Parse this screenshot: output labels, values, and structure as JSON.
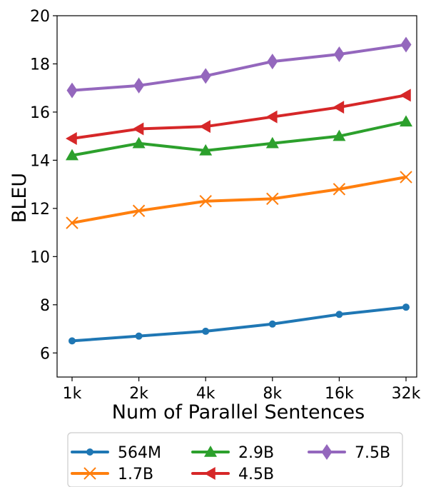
{
  "chart_data": {
    "type": "line",
    "title": "",
    "xlabel": "Num of Parallel Sentences",
    "ylabel": "BLEU",
    "categories": [
      "1k",
      "2k",
      "4k",
      "8k",
      "16k",
      "32k"
    ],
    "ylim": [
      5,
      20
    ],
    "yticks": [
      6,
      8,
      10,
      12,
      14,
      16,
      18,
      20
    ],
    "grid": false,
    "legend_position": "bottom",
    "series": [
      {
        "name": "564M",
        "values": [
          6.5,
          6.7,
          6.9,
          7.2,
          7.6,
          7.9
        ],
        "color": "#1f77b4",
        "marker": "circle"
      },
      {
        "name": "1.7B",
        "values": [
          11.4,
          11.9,
          12.3,
          12.4,
          12.8,
          13.3
        ],
        "color": "#ff7f0e",
        "marker": "x"
      },
      {
        "name": "2.9B",
        "values": [
          14.2,
          14.7,
          14.4,
          14.7,
          15.0,
          15.6
        ],
        "color": "#2ca02c",
        "marker": "triangle-up"
      },
      {
        "name": "4.5B",
        "values": [
          14.9,
          15.3,
          15.4,
          15.8,
          16.2,
          16.7
        ],
        "color": "#d62728",
        "marker": "triangle-left"
      },
      {
        "name": "7.5B",
        "values": [
          16.9,
          17.1,
          17.5,
          18.1,
          18.4,
          18.8
        ],
        "color": "#9467bd",
        "marker": "thin-diamond"
      }
    ],
    "legend_order": [
      "564M",
      "1.7B",
      "2.9B",
      "4.5B",
      "7.5B"
    ]
  }
}
